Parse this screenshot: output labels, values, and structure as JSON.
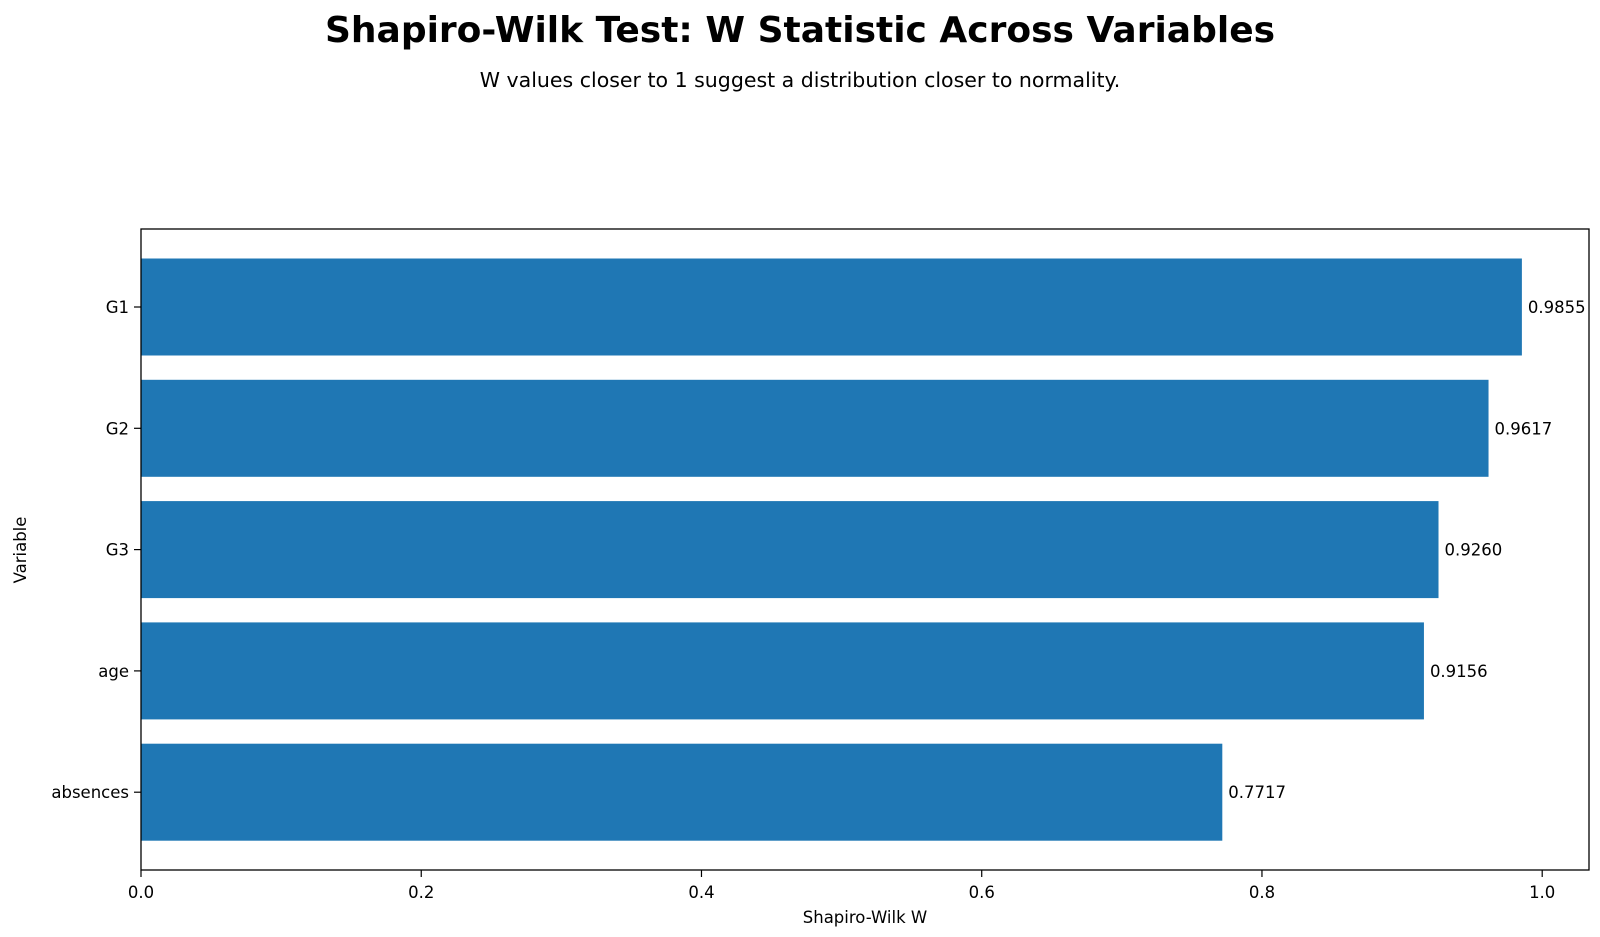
{
  "chart_data": {
    "type": "bar",
    "orientation": "horizontal",
    "title": "Shapiro-Wilk Test: W Statistic Across Variables",
    "subtitle": "W values closer to 1 suggest a distribution closer to normality.",
    "xlabel": "Shapiro-Wilk W",
    "ylabel": "Variable",
    "xlim": [
      0,
      1.0334
    ],
    "x_ticks": [
      "0.0",
      "0.2",
      "0.4",
      "0.6",
      "0.8",
      "1.0"
    ],
    "categories": [
      "G1",
      "G2",
      "G3",
      "age",
      "absences"
    ],
    "values": [
      0.9855,
      0.9617,
      0.926,
      0.9156,
      0.7717
    ],
    "data_labels": [
      "0.9855",
      "0.9617",
      "0.9260",
      "0.9156",
      "0.7717"
    ],
    "bar_color": "#1f77b4",
    "grid": false,
    "legend": "none"
  }
}
